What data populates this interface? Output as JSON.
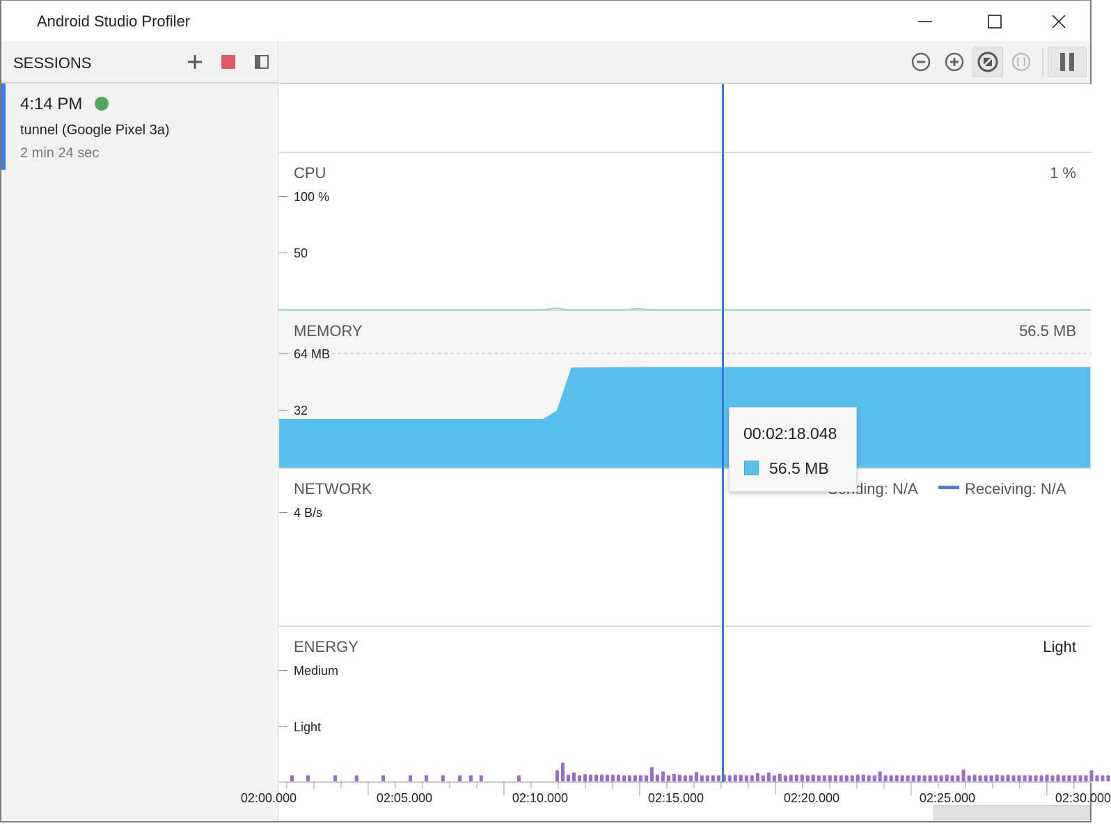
{
  "window": {
    "title": "Android Studio Profiler",
    "controls": [
      "minimize-icon",
      "maximize-icon",
      "close-icon"
    ]
  },
  "sidebar": {
    "title": "SESSIONS",
    "buttons": [
      "plus-icon",
      "stop-icon",
      "panel-icon"
    ],
    "session": {
      "time": "4:14 PM",
      "status_color": "#53a65a",
      "name": "tunnel (Google Pixel 3a)",
      "duration": "2 min 24 sec"
    }
  },
  "toolbar": {
    "buttons": [
      "zoom-out-icon",
      "zoom-in-icon",
      "reset-zoom-icon",
      "zoom-to-selection-icon",
      "pause-icon"
    ]
  },
  "timeline": {
    "unit_seconds": true,
    "start": 121.72,
    "end": 151.6,
    "cursor": 138.048,
    "labels": [
      {
        "t": 120,
        "text": "02:00.000"
      },
      {
        "t": 125,
        "text": "02:05.000"
      },
      {
        "t": 130,
        "text": "02:10.000"
      },
      {
        "t": 135,
        "text": "02:15.000"
      },
      {
        "t": 140,
        "text": "02:20.000"
      },
      {
        "t": 145,
        "text": "02:25.000"
      },
      {
        "t": 150,
        "text": "02:30.000"
      }
    ]
  },
  "cpu": {
    "title": "CPU",
    "value": "1 %",
    "ticks": [
      "100 %",
      "50"
    ],
    "color": "#8fd6c2",
    "series": [
      [
        121.7,
        0
      ],
      [
        131.5,
        0
      ],
      [
        131.9,
        1.5
      ],
      [
        132.3,
        0
      ],
      [
        134.6,
        0
      ],
      [
        134.9,
        1
      ],
      [
        135.3,
        0
      ],
      [
        151.6,
        0
      ]
    ]
  },
  "memory": {
    "title": "MEMORY",
    "value": "56.5 MB",
    "ticks": [
      "64 MB",
      "32"
    ],
    "ymax": 64,
    "color": "#56bfec",
    "series": [
      [
        121.72,
        27.3
      ],
      [
        131.45,
        27.3
      ],
      [
        131.95,
        32
      ],
      [
        132.48,
        56.1
      ],
      [
        135.5,
        56.4
      ],
      [
        151.6,
        56.4
      ]
    ]
  },
  "network": {
    "title": "NETWORK",
    "tick": "4 B/s",
    "sending": "Sending: N/A",
    "receiving": "Receiving: N/A",
    "receiving_color": "#4a7fd4"
  },
  "energy": {
    "title": "ENERGY",
    "value": "Light",
    "ticks": [
      "Medium",
      "Light"
    ],
    "color": "#9a6ccf",
    "sparse": [
      122.18,
      122.77,
      123.77,
      124.56,
      125.54,
      126.54,
      127.13,
      127.74,
      128.36,
      128.77,
      129.15,
      130.54
    ],
    "dense_start": 131.95,
    "dense_step": 0.205,
    "dense": [
      0.2,
      0.34,
      0.12,
      0.16,
      0.11,
      0.13,
      0.12,
      0.12,
      0.12,
      0.12,
      0.12,
      0.12,
      0.11,
      0.11,
      0.11,
      0.11,
      0.11,
      0.26,
      0.12,
      0.18,
      0.11,
      0.14,
      0.12,
      0.11,
      0.11,
      0.17,
      0.11,
      0.11,
      0.11,
      0.11,
      0.12,
      0.11,
      0.12,
      0.12,
      0.11,
      0.11,
      0.15,
      0.11,
      0.16,
      0.11,
      0.14,
      0.11,
      0.12,
      0.12,
      0.12,
      0.11,
      0.12,
      0.11,
      0.11,
      0.11,
      0.11,
      0.11,
      0.11,
      0.11,
      0.12,
      0.12,
      0.11,
      0.11,
      0.18,
      0.11,
      0.11,
      0.11,
      0.11,
      0.11,
      0.11,
      0.11,
      0.11,
      0.11,
      0.11,
      0.11,
      0.12,
      0.11,
      0.11,
      0.21,
      0.11,
      0.12,
      0.11,
      0.11,
      0.11,
      0.12,
      0.11,
      0.12,
      0.11,
      0.11,
      0.11,
      0.11,
      0.11,
      0.11,
      0.12,
      0.11,
      0.12,
      0.11,
      0.11,
      0.11,
      0.11,
      0.11,
      0.2,
      0.11,
      0.11,
      0.11
    ]
  },
  "tooltip": {
    "time": "00:02:18.048",
    "value": "56.5 MB"
  }
}
